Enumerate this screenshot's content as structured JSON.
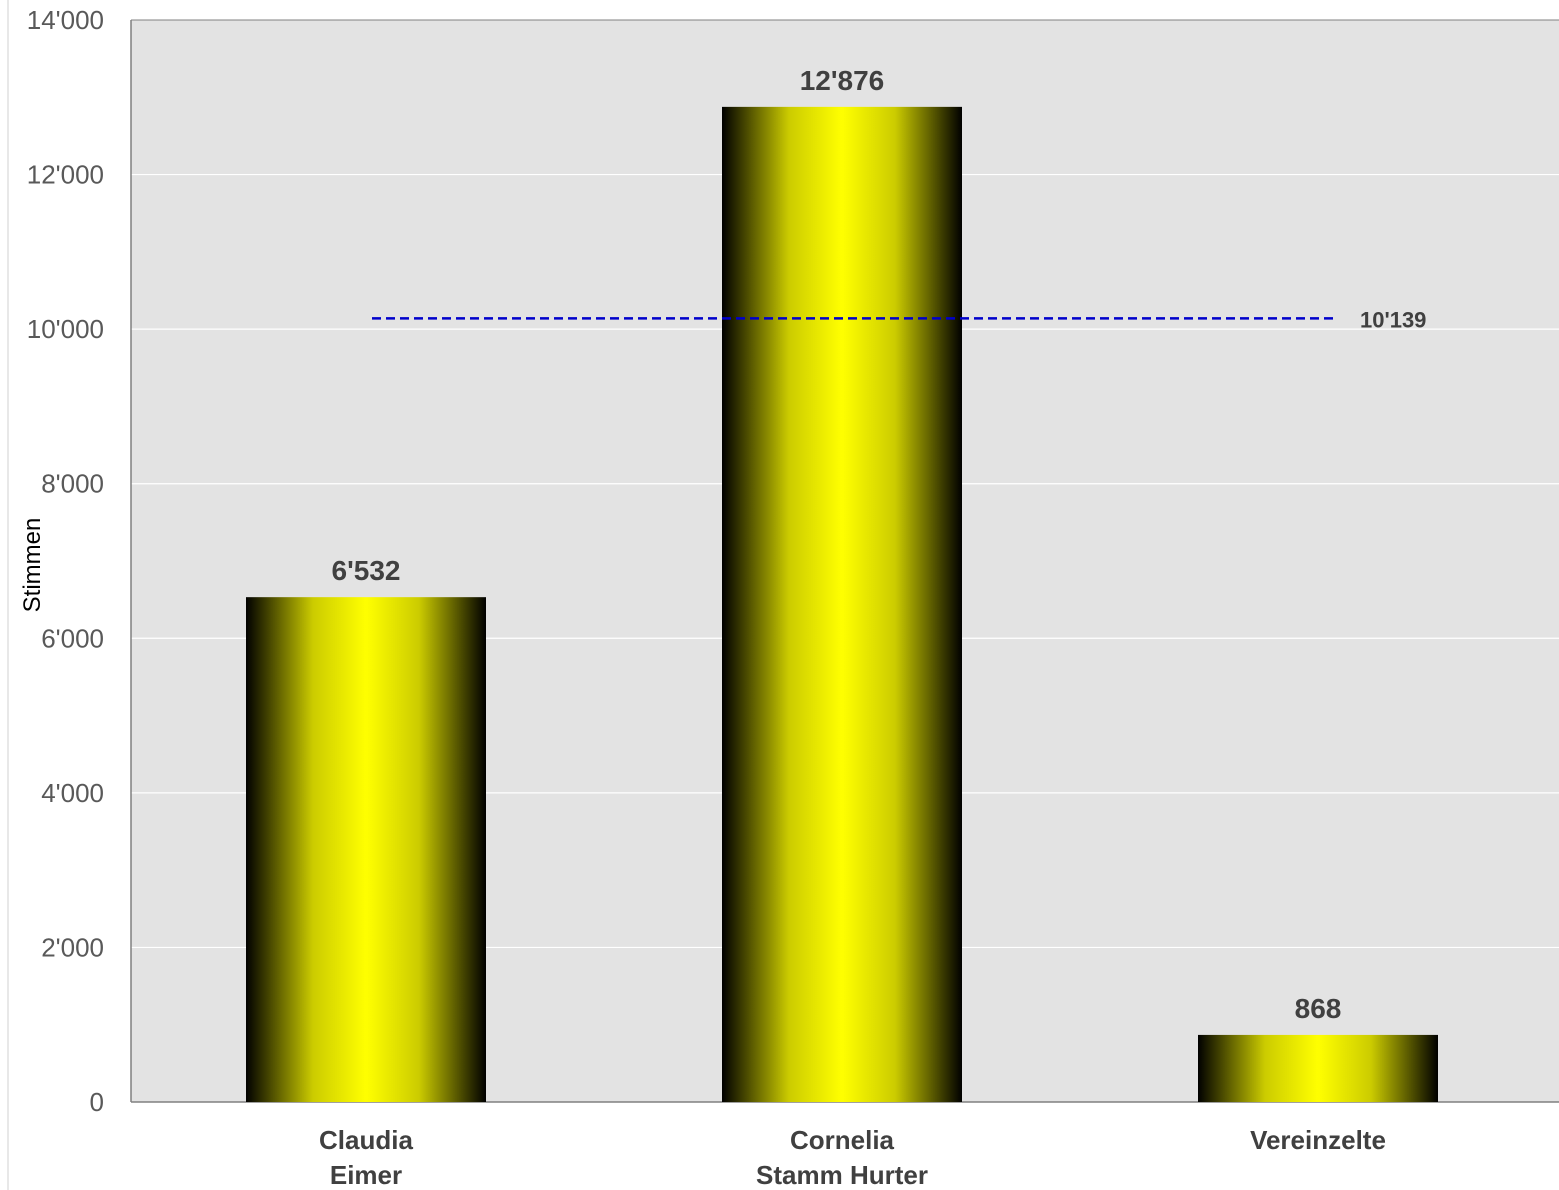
{
  "chart_data": {
    "type": "bar",
    "categories": [
      [
        "Claudia",
        "Eimer"
      ],
      [
        "Cornelia",
        "Stamm Hurter"
      ],
      [
        "Vereinzelte"
      ]
    ],
    "values": [
      6532,
      12876,
      868
    ],
    "value_labels": [
      "6'532",
      "12'876",
      "868"
    ],
    "ylabel": "Stimmen",
    "ylim": [
      0,
      14000
    ],
    "yticks": [
      {
        "value": 0,
        "label": "0"
      },
      {
        "value": 2000,
        "label": "2'000"
      },
      {
        "value": 4000,
        "label": "4'000"
      },
      {
        "value": 6000,
        "label": "6'000"
      },
      {
        "value": 8000,
        "label": "8'000"
      },
      {
        "value": 10000,
        "label": "10'000"
      },
      {
        "value": 12000,
        "label": "12'000"
      },
      {
        "value": 14000,
        "label": "14'000"
      }
    ],
    "reference_line": {
      "value": 10139,
      "label": "10'139",
      "style": "dashed",
      "color": "#0000cc"
    },
    "grid": true,
    "colors": {
      "plot_bg": "#e3e3e3",
      "bar_center": "#ffff00",
      "bar_edge": "#000000",
      "grid": "#ffffff"
    }
  }
}
